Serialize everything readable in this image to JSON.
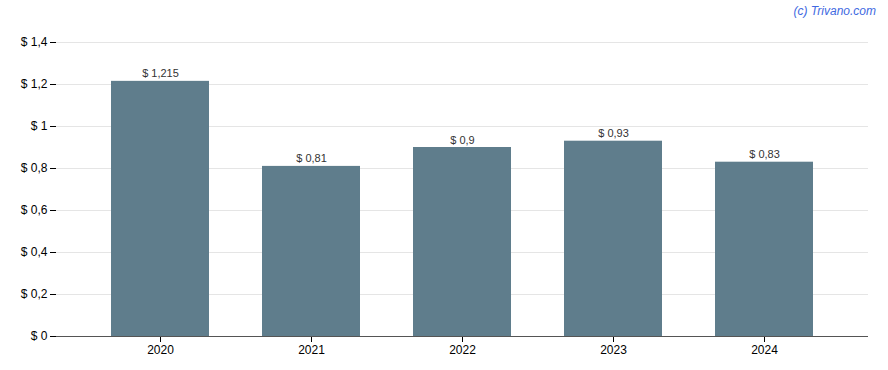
{
  "chart_data": {
    "type": "bar",
    "categories": [
      "2020",
      "2021",
      "2022",
      "2023",
      "2024"
    ],
    "values": [
      1.215,
      0.81,
      0.9,
      0.93,
      0.83
    ],
    "value_labels": [
      "$ 1,215",
      "$ 0,81",
      "$ 0,9",
      "$ 0,93",
      "$ 0,83"
    ],
    "data_labels": true,
    "color": "#5f7d8c",
    "ylim": [
      0,
      1.4
    ],
    "yticks": [
      {
        "value": 0,
        "label": "$ 0"
      },
      {
        "value": 0.2,
        "label": "$ 0,2"
      },
      {
        "value": 0.4,
        "label": "$ 0,4"
      },
      {
        "value": 0.6,
        "label": "$ 0,6"
      },
      {
        "value": 0.8,
        "label": "$ 0,8"
      },
      {
        "value": 1.0,
        "label": "$ 1"
      },
      {
        "value": 1.2,
        "label": "$ 1,2"
      },
      {
        "value": 1.4,
        "label": "$ 1,4"
      }
    ],
    "grid": true,
    "annotations": [
      {
        "text": "(c) Trivano.com",
        "color": "#4169e1"
      }
    ]
  }
}
